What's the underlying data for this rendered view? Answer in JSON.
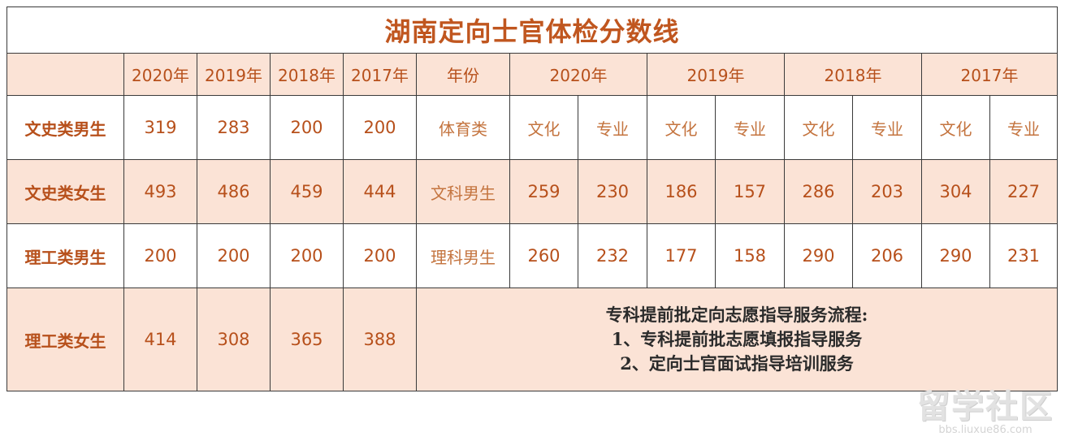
{
  "title": "湖南定向士官体检分数线",
  "header": {
    "left_years": [
      "2020年",
      "2019年",
      "2018年",
      "2017年"
    ],
    "right_label": "年份",
    "right_years": [
      "2020年",
      "2019年",
      "2018年",
      "2017年"
    ]
  },
  "sports_row": {
    "label": "体育类",
    "subcols": [
      "文化",
      "专业",
      "文化",
      "专业",
      "文化",
      "专业",
      "文化",
      "专业"
    ]
  },
  "rows": [
    {
      "label": "文史类男生",
      "values": [
        "319",
        "283",
        "200",
        "200"
      ],
      "right_label": "体育类"
    },
    {
      "label": "文史类女生",
      "values": [
        "493",
        "486",
        "459",
        "444"
      ],
      "right_label": "文科男生",
      "right_values": [
        "259",
        "230",
        "186",
        "157",
        "286",
        "203",
        "304",
        "227"
      ]
    },
    {
      "label": "理工类男生",
      "values": [
        "200",
        "200",
        "200",
        "200"
      ],
      "right_label": "理科男生",
      "right_values": [
        "260",
        "232",
        "177",
        "158",
        "290",
        "206",
        "290",
        "231"
      ]
    },
    {
      "label": "理工类女生",
      "values": [
        "414",
        "308",
        "365",
        "388"
      ]
    }
  ],
  "service_note": {
    "heading": "专科提前批定向志愿指导服务流程:",
    "items": [
      "1、专科提前批志愿填报指导服务",
      "2、定向士官面试指导培训服务"
    ]
  },
  "watermark": {
    "brand": "留学社区",
    "url": "bbs.liuxue86.com"
  },
  "colors": {
    "accent_text": "#b7501b",
    "peach_fill": "#fbe3d6",
    "border": "#3a3a3a"
  }
}
